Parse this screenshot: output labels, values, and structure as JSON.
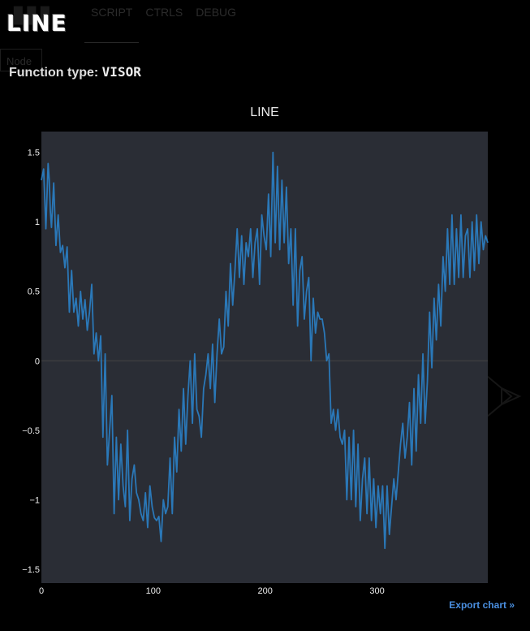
{
  "header": {
    "logo": "LINE",
    "tabs": [
      {
        "label": "SCRIPT"
      },
      {
        "label": "CTRLS"
      },
      {
        "label": "DEBUG"
      }
    ],
    "node_button": "Node"
  },
  "function_type": {
    "label": "Function type:",
    "value": "VISOR"
  },
  "export_link": "Export chart »",
  "colors": {
    "background": "#000000",
    "plot_background": "#2a2d35",
    "series": "#2a78b8",
    "zero_line": "#444444",
    "export_link": "#4a8fe0"
  },
  "chart_data": {
    "type": "line",
    "title": "LINE",
    "xlabel": "",
    "ylabel": "",
    "xlim": [
      0,
      399
    ],
    "ylim": [
      -1.6,
      1.65
    ],
    "xticks": [
      0,
      100,
      200,
      300
    ],
    "xtick_labels": [
      "0",
      "100",
      "200",
      "300"
    ],
    "yticks": [
      -1.5,
      -1,
      -0.5,
      0,
      0.5,
      1,
      1.5
    ],
    "ytick_labels": [
      "−1.5",
      "−1",
      "−0.5",
      "0",
      "0.5",
      "1",
      "1.5"
    ],
    "grid": false,
    "legend": "none",
    "series": [
      {
        "n_points": 400,
        "anchors": [
          [
            0,
            1.3
          ],
          [
            2,
            1.38
          ],
          [
            4,
            0.95
          ],
          [
            6,
            1.42
          ],
          [
            9,
            0.96
          ],
          [
            11,
            1.28
          ],
          [
            13,
            0.83
          ],
          [
            15,
            1.05
          ],
          [
            17,
            0.78
          ],
          [
            19,
            0.83
          ],
          [
            21,
            0.67
          ],
          [
            23,
            0.82
          ],
          [
            25,
            0.35
          ],
          [
            27,
            0.65
          ],
          [
            29,
            0.35
          ],
          [
            31,
            0.45
          ],
          [
            33,
            0.25
          ],
          [
            35,
            0.5
          ],
          [
            37,
            0.3
          ],
          [
            39,
            0.44
          ],
          [
            41,
            0.22
          ],
          [
            43,
            0.35
          ],
          [
            45,
            0.55
          ],
          [
            47,
            0.05
          ],
          [
            49,
            0.2
          ],
          [
            51,
            0.0
          ],
          [
            53,
            0.18
          ],
          [
            55,
            -0.55
          ],
          [
            57,
            0.05
          ],
          [
            59,
            -0.75
          ],
          [
            61,
            -0.5
          ],
          [
            63,
            -0.25
          ],
          [
            65,
            -1.1
          ],
          [
            67,
            -0.55
          ],
          [
            69,
            -1.0
          ],
          [
            71,
            -0.6
          ],
          [
            73,
            -0.9
          ],
          [
            75,
            -1.05
          ],
          [
            77,
            -0.5
          ],
          [
            79,
            -1.15
          ],
          [
            81,
            -0.85
          ],
          [
            83,
            -0.75
          ],
          [
            85,
            -0.95
          ],
          [
            87,
            -1.0
          ],
          [
            89,
            -1.1
          ],
          [
            91,
            -1.15
          ],
          [
            93,
            -0.95
          ],
          [
            95,
            -1.2
          ],
          [
            97,
            -0.9
          ],
          [
            99,
            -1.05
          ],
          [
            101,
            -1.13
          ],
          [
            103,
            -1.15
          ],
          [
            105,
            -1.12
          ],
          [
            107,
            -1.3
          ],
          [
            109,
            -1.0
          ],
          [
            111,
            -1.1
          ],
          [
            113,
            -1.05
          ],
          [
            115,
            -0.7
          ],
          [
            117,
            -1.1
          ],
          [
            119,
            -0.55
          ],
          [
            121,
            -0.8
          ],
          [
            123,
            -0.35
          ],
          [
            125,
            -0.65
          ],
          [
            127,
            -0.2
          ],
          [
            129,
            -0.6
          ],
          [
            131,
            -0.25
          ],
          [
            133,
            0.0
          ],
          [
            135,
            -0.45
          ],
          [
            137,
            0.05
          ],
          [
            139,
            -0.35
          ],
          [
            141,
            -0.4
          ],
          [
            143,
            -0.55
          ],
          [
            145,
            -0.2
          ],
          [
            147,
            -0.1
          ],
          [
            149,
            0.05
          ],
          [
            151,
            -0.2
          ],
          [
            153,
            0.12
          ],
          [
            155,
            -0.3
          ],
          [
            157,
            0.05
          ],
          [
            159,
            0.3
          ],
          [
            161,
            0.05
          ],
          [
            163,
            0.1
          ],
          [
            165,
            0.5
          ],
          [
            167,
            0.25
          ],
          [
            169,
            0.7
          ],
          [
            171,
            0.4
          ],
          [
            173,
            0.65
          ],
          [
            175,
            0.95
          ],
          [
            177,
            0.6
          ],
          [
            179,
            0.9
          ],
          [
            181,
            0.55
          ],
          [
            183,
            0.85
          ],
          [
            185,
            0.75
          ],
          [
            187,
            0.95
          ],
          [
            189,
            0.6
          ],
          [
            191,
            0.85
          ],
          [
            193,
            0.95
          ],
          [
            195,
            0.55
          ],
          [
            197,
            1.05
          ],
          [
            199,
            0.9
          ],
          [
            201,
            0.8
          ],
          [
            203,
            1.2
          ],
          [
            205,
            0.75
          ],
          [
            207,
            1.5
          ],
          [
            209,
            0.85
          ],
          [
            211,
            1.4
          ],
          [
            213,
            0.8
          ],
          [
            215,
            1.3
          ],
          [
            217,
            0.85
          ],
          [
            219,
            1.25
          ],
          [
            221,
            0.7
          ],
          [
            223,
            0.95
          ],
          [
            225,
            0.4
          ],
          [
            227,
            0.95
          ],
          [
            229,
            0.25
          ],
          [
            231,
            0.65
          ],
          [
            233,
            0.75
          ],
          [
            235,
            0.3
          ],
          [
            237,
            0.5
          ],
          [
            239,
            0.6
          ],
          [
            241,
            0.0
          ],
          [
            243,
            0.45
          ],
          [
            245,
            0.2
          ],
          [
            247,
            0.35
          ],
          [
            249,
            0.3
          ],
          [
            251,
            0.3
          ],
          [
            253,
            0.2
          ],
          [
            255,
            0.0
          ],
          [
            257,
            0.05
          ],
          [
            259,
            -0.45
          ],
          [
            261,
            -0.35
          ],
          [
            263,
            -0.5
          ],
          [
            265,
            -0.35
          ],
          [
            267,
            -0.55
          ],
          [
            269,
            -0.6
          ],
          [
            271,
            -0.5
          ],
          [
            273,
            -1.0
          ],
          [
            275,
            -0.55
          ],
          [
            277,
            -1.0
          ],
          [
            279,
            -0.5
          ],
          [
            281,
            -1.05
          ],
          [
            283,
            -0.6
          ],
          [
            285,
            -1.15
          ],
          [
            287,
            -0.85
          ],
          [
            289,
            -0.7
          ],
          [
            291,
            -1.1
          ],
          [
            293,
            -0.7
          ],
          [
            295,
            -1.15
          ],
          [
            297,
            -0.85
          ],
          [
            299,
            -1.2
          ],
          [
            301,
            -0.9
          ],
          [
            303,
            -1.1
          ],
          [
            305,
            -0.9
          ],
          [
            307,
            -1.35
          ],
          [
            309,
            -0.9
          ],
          [
            311,
            -1.25
          ],
          [
            313,
            -1.05
          ],
          [
            315,
            -0.85
          ],
          [
            317,
            -1.0
          ],
          [
            319,
            -0.8
          ],
          [
            321,
            -0.6
          ],
          [
            323,
            -0.45
          ],
          [
            325,
            -0.7
          ],
          [
            327,
            -0.55
          ],
          [
            329,
            -0.3
          ],
          [
            331,
            -0.75
          ],
          [
            333,
            -0.2
          ],
          [
            335,
            -0.65
          ],
          [
            337,
            -0.1
          ],
          [
            339,
            -0.45
          ],
          [
            341,
            0.05
          ],
          [
            343,
            -0.45
          ],
          [
            345,
            -0.15
          ],
          [
            347,
            0.35
          ],
          [
            349,
            -0.05
          ],
          [
            351,
            0.45
          ],
          [
            353,
            0.15
          ],
          [
            355,
            0.55
          ],
          [
            357,
            0.25
          ],
          [
            359,
            0.75
          ],
          [
            361,
            0.5
          ],
          [
            363,
            0.95
          ],
          [
            365,
            0.55
          ],
          [
            367,
            1.05
          ],
          [
            369,
            0.55
          ],
          [
            371,
            0.95
          ],
          [
            373,
            0.6
          ],
          [
            375,
            1.05
          ],
          [
            377,
            0.6
          ],
          [
            379,
            0.9
          ],
          [
            381,
            0.95
          ],
          [
            383,
            0.6
          ],
          [
            385,
            1.0
          ],
          [
            387,
            0.65
          ],
          [
            389,
            1.05
          ],
          [
            391,
            0.7
          ],
          [
            393,
            1.0
          ],
          [
            395,
            0.8
          ],
          [
            397,
            0.9
          ],
          [
            399,
            0.85
          ]
        ]
      }
    ]
  }
}
